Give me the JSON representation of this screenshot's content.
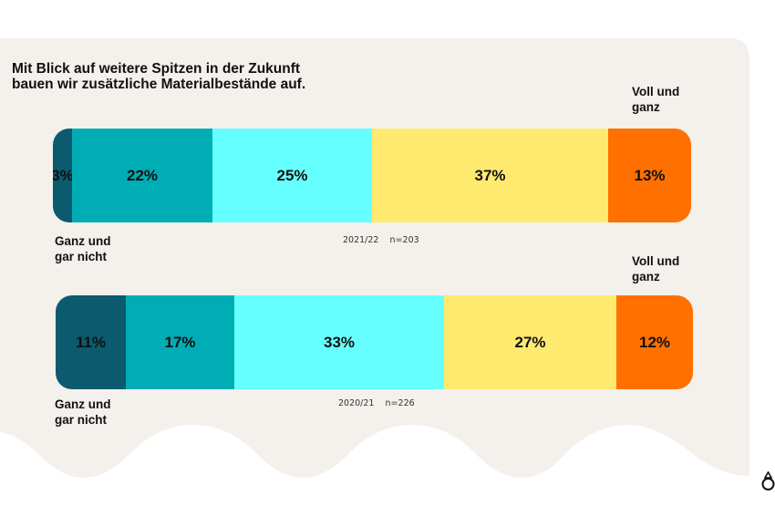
{
  "title_line1": "Mit Blick auf weitere Spitzen in der Zukunft",
  "title_line2": "bauen wir zusätzliche Materialbestände auf.",
  "chart_data": {
    "type": "bar",
    "orientation": "horizontal-stacked",
    "colors": [
      "#0b5a6e",
      "#00adb5",
      "#66ffff",
      "#ffea70",
      "#ff7000"
    ],
    "bars": [
      {
        "caption": "2021/22    n=203",
        "values": [
          3,
          22,
          25,
          37,
          13
        ],
        "labels": [
          "3%",
          "22%",
          "25%",
          "37%",
          "13%"
        ],
        "left_label": [
          "Ganz und",
          "gar nicht"
        ],
        "right_label": [
          "Voll und",
          "ganz"
        ]
      },
      {
        "caption": "2020/21    n=226",
        "values": [
          11,
          17,
          33,
          27,
          12
        ],
        "labels": [
          "11%",
          "17%",
          "33%",
          "27%",
          "12%"
        ],
        "left_label": [
          "Ganz und",
          "gar nicht"
        ],
        "right_label": [
          "Voll und",
          "ganz"
        ]
      }
    ]
  },
  "brand_icon": "brand-logo-icon"
}
